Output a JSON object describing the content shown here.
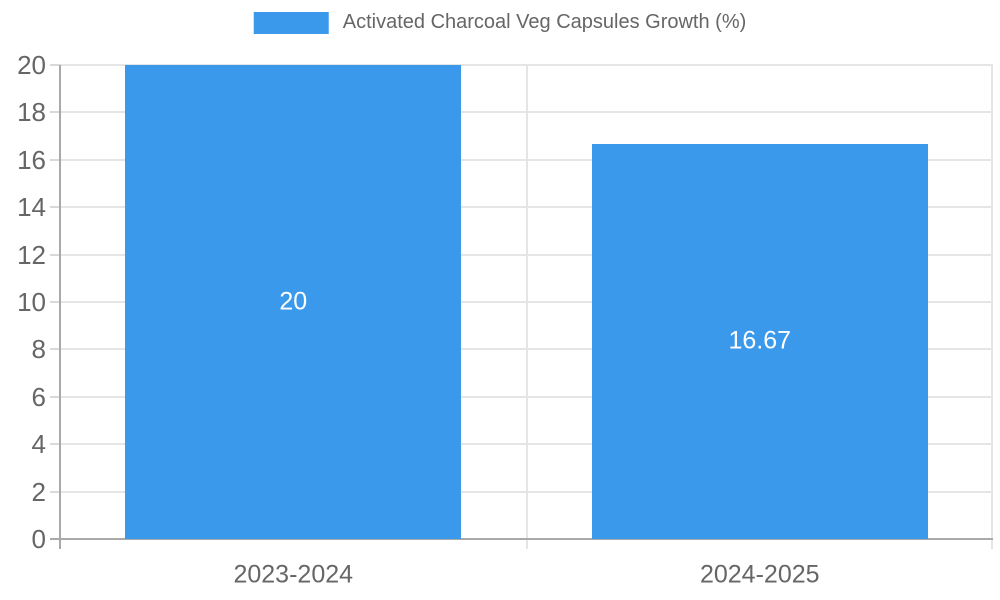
{
  "chart_data": {
    "type": "bar",
    "title": "",
    "legend": {
      "label": "Activated Charcoal Veg Capsules Growth (%)",
      "position": "top"
    },
    "categories": [
      "2023-2024",
      "2024-2025"
    ],
    "series": [
      {
        "name": "Activated Charcoal Veg Capsules Growth (%)",
        "values": [
          20,
          16.67
        ],
        "value_labels": [
          "20",
          "16.67"
        ],
        "color": "#3b99ec"
      }
    ],
    "xlabel": "",
    "ylabel": "",
    "ylim": [
      0,
      20
    ],
    "ytick_step": 2,
    "ytick_labels": [
      "0",
      "2",
      "4",
      "6",
      "8",
      "10",
      "12",
      "14",
      "16",
      "18",
      "20"
    ],
    "grid": true,
    "legend_position": "top-center",
    "colors": {
      "bar": "#3b99ec",
      "grid": "#e5e5e5",
      "tick": "#d9d9d9",
      "axis": "#a9a9a9",
      "text": "#666666",
      "value_label": "#ffffff",
      "background": "#ffffff"
    }
  }
}
